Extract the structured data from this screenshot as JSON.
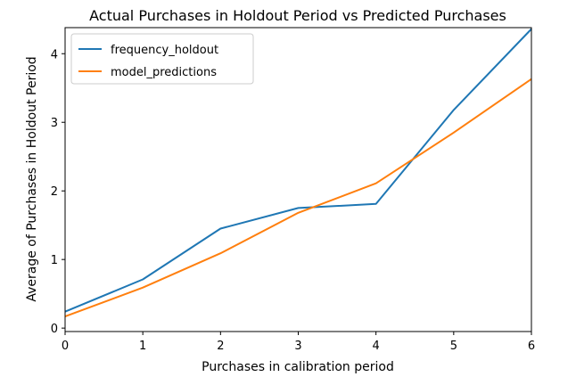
{
  "chart_data": {
    "type": "line",
    "title": "Actual Purchases in Holdout Period vs Predicted Purchases",
    "xlabel": "Purchases in calibration period",
    "ylabel": "Average of Purchases in Holdout Period",
    "x": [
      0,
      1,
      2,
      3,
      4,
      5,
      6
    ],
    "xlim": [
      0,
      6
    ],
    "ylim": [
      -0.05,
      4.38
    ],
    "xticks": [
      "0",
      "1",
      "2",
      "3",
      "4",
      "5",
      "6"
    ],
    "yticks": [
      "0",
      "1",
      "2",
      "3",
      "4"
    ],
    "grid": false,
    "legend_position": "top-left",
    "series": [
      {
        "name": "frequency_holdout",
        "color": "#1f77b4",
        "values": [
          0.24,
          0.71,
          1.45,
          1.75,
          1.81,
          3.18,
          4.36
        ]
      },
      {
        "name": "model_predictions",
        "color": "#ff7f0e",
        "values": [
          0.17,
          0.59,
          1.09,
          1.68,
          2.11,
          2.85,
          3.63
        ]
      }
    ]
  }
}
